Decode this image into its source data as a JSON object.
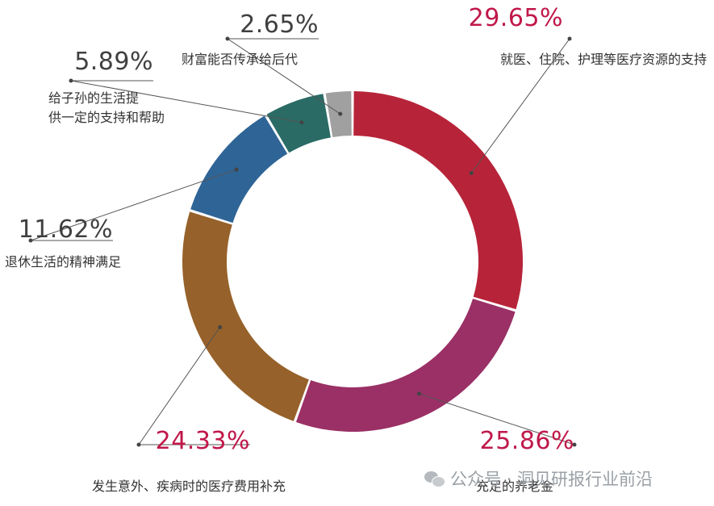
{
  "chart_data": {
    "type": "pie",
    "variant": "donut",
    "title": "",
    "slices": [
      {
        "label": "就医、住院、护理等医疗资源的支持",
        "value": 29.65,
        "display": "29.65%",
        "color": "#b72439",
        "pct_color": "#c0184a"
      },
      {
        "label": "充足的养老金",
        "value": 25.86,
        "display": "25.86%",
        "color": "#9a3065",
        "pct_color": "#c0184a"
      },
      {
        "label": "发生意外、疾病时的医疗费用补充",
        "value": 24.33,
        "display": "24.33%",
        "color": "#96612a",
        "pct_color": "#c0184a"
      },
      {
        "label": "退休生活的精神满足",
        "value": 11.62,
        "display": "11.62%",
        "color": "#2f6496",
        "pct_color": "#404040"
      },
      {
        "label": "给子孙的生活提供一定的支持和帮助",
        "value": 5.89,
        "display": "5.89%",
        "color": "#2a6b66",
        "pct_color": "#404040"
      },
      {
        "label": "财富能否传承给后代",
        "value": 2.65,
        "display": "2.65%",
        "color": "#a0a0a0",
        "pct_color": "#404040"
      }
    ],
    "legend": "none"
  },
  "watermark": {
    "text": "公众号 · 洞见研报行业前沿"
  }
}
